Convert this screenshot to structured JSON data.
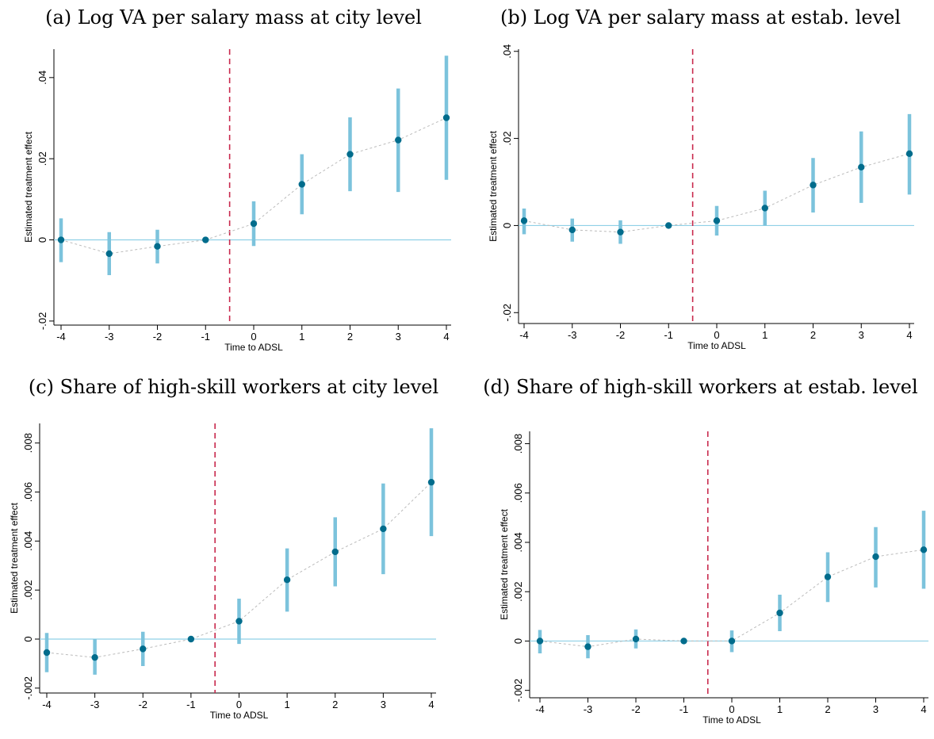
{
  "chart_data": [
    {
      "type": "scatter",
      "title": "(a) Log VA per salary mass at city level",
      "xlabel": "Time to ADSL",
      "ylabel": "Estimated treatment effect",
      "x": [
        -4,
        -3,
        -2,
        -1,
        0,
        1,
        2,
        3,
        4
      ],
      "x_tick_labels": [
        "-4",
        "-3",
        "-2",
        "-1",
        "0",
        "1",
        "2",
        "3",
        "4"
      ],
      "ylim": [
        -0.021,
        0.047
      ],
      "y_ticks": [
        -0.02,
        0,
        0.02,
        0.04
      ],
      "y_tick_labels": [
        "-.02",
        "0",
        ".02",
        ".04"
      ],
      "estimates": [
        0.0,
        -0.0034,
        -0.0016,
        0.0,
        0.004,
        0.0137,
        0.0211,
        0.0246,
        0.0301
      ],
      "ci_low": [
        -0.0055,
        -0.0087,
        -0.0058,
        0.0,
        -0.0015,
        0.0063,
        0.012,
        0.0118,
        0.0148
      ],
      "ci_high": [
        0.0053,
        0.0019,
        0.0025,
        0.0,
        0.0095,
        0.0211,
        0.0302,
        0.0373,
        0.0454
      ],
      "reference_vline": -0.5,
      "zero_line": 0,
      "grid": false,
      "colors": {
        "ci": "#7cc3dc",
        "point": "#006c8c",
        "connector": "#bbbbbb",
        "vline": "#c8284c",
        "hline": "#8fd0e6"
      }
    },
    {
      "type": "scatter",
      "title": "(b) Log VA per salary mass at estab. level",
      "xlabel": "Time to ADSL",
      "ylabel": "Estimated treatment effect",
      "x": [
        -4,
        -3,
        -2,
        -1,
        0,
        1,
        2,
        3,
        4
      ],
      "x_tick_labels": [
        "-4",
        "-3",
        "-2",
        "-1",
        "0",
        "1",
        "2",
        "3",
        "4"
      ],
      "ylim": [
        -0.0225,
        0.0405
      ],
      "y_ticks": [
        -0.02,
        0,
        0.02,
        0.04
      ],
      "y_tick_labels": [
        "-.02",
        "0",
        ".02",
        ".04"
      ],
      "estimates": [
        0.0011,
        -0.001,
        -0.0015,
        0.0,
        0.0011,
        0.004,
        0.0093,
        0.0134,
        0.0165
      ],
      "ci_low": [
        -0.002,
        -0.0037,
        -0.0042,
        0.0,
        -0.0023,
        0.0,
        0.003,
        0.0052,
        0.0071
      ],
      "ci_high": [
        0.0039,
        0.0016,
        0.0012,
        0.0,
        0.0045,
        0.008,
        0.0155,
        0.0216,
        0.0256
      ],
      "reference_vline": -0.5,
      "zero_line": 0,
      "grid": false,
      "colors": {
        "ci": "#7cc3dc",
        "point": "#006c8c",
        "connector": "#bbbbbb",
        "vline": "#c8284c",
        "hline": "#8fd0e6"
      }
    },
    {
      "type": "scatter",
      "title": "(c) Share of high-skill workers at city level",
      "xlabel": "Time to ADSL",
      "ylabel": "Estimated treatment effect",
      "x": [
        -4,
        -3,
        -2,
        -1,
        0,
        1,
        2,
        3,
        4
      ],
      "x_tick_labels": [
        "-4",
        "-3",
        "-2",
        "-1",
        "0",
        "1",
        "2",
        "3",
        "4"
      ],
      "ylim": [
        -0.0022,
        0.0088
      ],
      "y_ticks": [
        -0.002,
        0,
        0.002,
        0.004,
        0.006,
        0.008
      ],
      "y_tick_labels": [
        "-.002",
        "0",
        ".002",
        ".004",
        ".006",
        ".008"
      ],
      "estimates": [
        -0.00055,
        -0.00075,
        -0.0004,
        0.0,
        0.00073,
        0.00242,
        0.00356,
        0.0045,
        0.0064
      ],
      "ci_low": [
        -0.00135,
        -0.00145,
        -0.0011,
        0.0,
        -0.0002,
        0.00112,
        0.00215,
        0.00265,
        0.0042
      ],
      "ci_high": [
        0.00025,
        0.0,
        0.0003,
        0.0,
        0.00165,
        0.0037,
        0.00497,
        0.00635,
        0.0086
      ],
      "reference_vline": -0.5,
      "zero_line": 0,
      "grid": false,
      "colors": {
        "ci": "#7cc3dc",
        "point": "#006c8c",
        "connector": "#bbbbbb",
        "vline": "#c8284c",
        "hline": "#8fd0e6"
      }
    },
    {
      "type": "scatter",
      "title": "(d) Share of high-skill workers at estab. level",
      "xlabel": "Time to ADSL",
      "ylabel": "Estimated treatment effect",
      "x": [
        -4,
        -3,
        -2,
        -1,
        0,
        1,
        2,
        3,
        4
      ],
      "x_tick_labels": [
        "-4",
        "-3",
        "-2",
        "-1",
        "0",
        "1",
        "2",
        "3",
        "4"
      ],
      "ylim": [
        -0.0023,
        0.0085
      ],
      "y_ticks": [
        -0.002,
        0,
        0.002,
        0.004,
        0.006,
        0.008
      ],
      "y_tick_labels": [
        "-.002",
        "0",
        ".002",
        ".004",
        ".006",
        ".008"
      ],
      "estimates": [
        0.0,
        -0.00023,
        8e-05,
        0.0,
        0.0,
        0.00114,
        0.0026,
        0.00342,
        0.0037
      ],
      "ci_low": [
        -0.0005,
        -0.0007,
        -0.0003,
        0.0,
        -0.00045,
        0.0004,
        0.00158,
        0.00217,
        0.00212
      ],
      "ci_high": [
        0.00045,
        0.00024,
        0.00047,
        0.0,
        0.00043,
        0.00188,
        0.0036,
        0.00462,
        0.00528
      ],
      "reference_vline": -0.5,
      "zero_line": 0,
      "grid": false,
      "colors": {
        "ci": "#7cc3dc",
        "point": "#006c8c",
        "connector": "#bbbbbb",
        "vline": "#c8284c",
        "hline": "#8fd0e6"
      }
    }
  ]
}
